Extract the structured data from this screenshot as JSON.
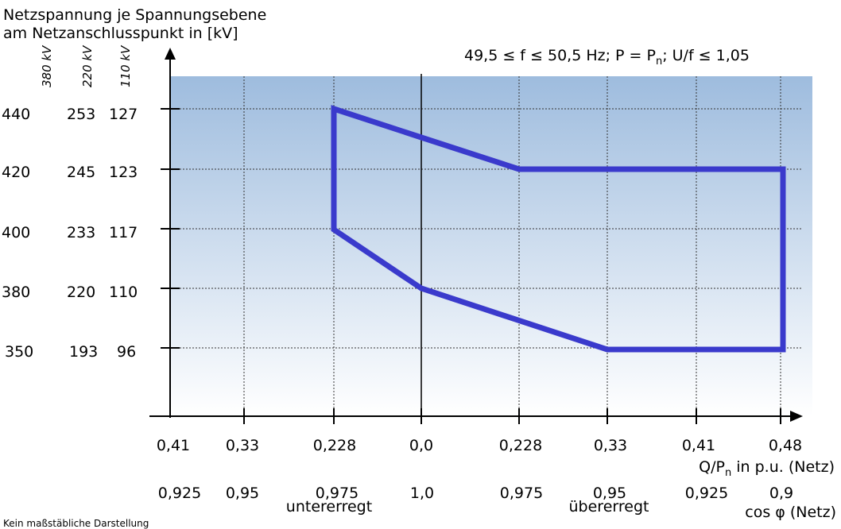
{
  "y_axis_title": {
    "line1": "Netzspannung je Spannungsebene",
    "line2": "am Netzanschlusspunkt in [kV]"
  },
  "voltage_levels": [
    "380 kV",
    "220 kV",
    "110 kV"
  ],
  "condition": {
    "part1": "49,5 ≤ f ≤ 50,5 Hz; P = P",
    "sub": "n",
    "part2": "; U/f ≤ 1,05"
  },
  "y_ticks": [
    {
      "v380": "440",
      "v220": "253",
      "v110": "127"
    },
    {
      "v380": "420",
      "v220": "245",
      "v110": "123"
    },
    {
      "v380": "400",
      "v220": "233",
      "v110": "117"
    },
    {
      "v380": "380",
      "v220": "220",
      "v110": "110"
    },
    {
      "v380": "350",
      "v220": "193",
      "v110": "96"
    }
  ],
  "q_ticks": [
    "0,41",
    "0,33",
    "0,228",
    "0,0",
    "0,228",
    "0,33",
    "0,41",
    "0,48"
  ],
  "cos_ticks": [
    "0,925",
    "0,95",
    "0,975",
    "1,0",
    "0,975",
    "0,95",
    "0,925",
    "0,9"
  ],
  "x_axis_title_q": {
    "part1": "Q/P",
    "sub": "n",
    "part2": " in p.u. (Netz)"
  },
  "x_axis_title_cos": "cos φ (Netz)",
  "region_left": "untererregt",
  "region_right": "übererregt",
  "footnote": "Kein maßstäbliche Darstellung",
  "colors": {
    "boundary": "#3a3acc",
    "gradient_top": "#9ebcde",
    "gradient_bottom": "#ffffff"
  },
  "boundary_polygon_q_u380": [
    {
      "q": -0.228,
      "u": 440
    },
    {
      "q": 0.0,
      "u": 430
    },
    {
      "q": 0.228,
      "u": 420
    },
    {
      "q": 0.48,
      "u": 420
    },
    {
      "q": 0.48,
      "u": 350
    },
    {
      "q": 0.33,
      "u": 350
    },
    {
      "q": 0.0,
      "u": 380
    },
    {
      "q": -0.228,
      "u": 400
    }
  ]
}
